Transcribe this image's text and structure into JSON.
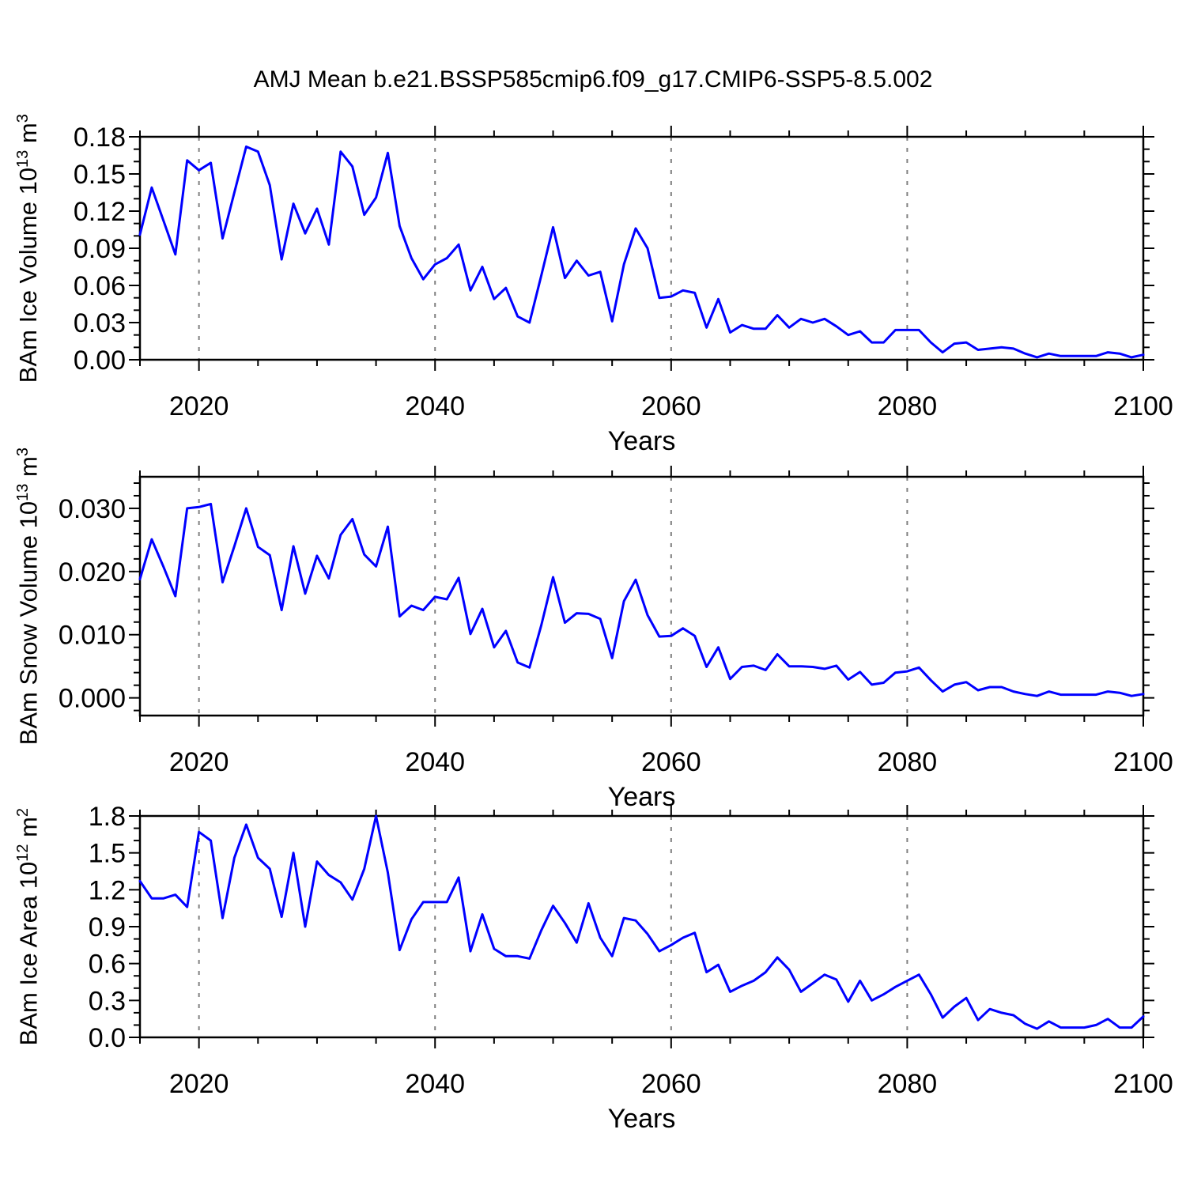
{
  "title": "AMJ Mean b.e21.BSSP585cmip6.f09_g17.CMIP6-SSP5-8.5.002",
  "line_color": "#0000ff",
  "grid_color": "#808080",
  "axis_color": "#000000",
  "chart_data": {
    "type": "line",
    "title": "AMJ Mean b.e21.BSSP585cmip6.f09_g17.CMIP6-SSP5-8.5.002",
    "xlabel": "Years",
    "xlim": [
      2015,
      2100
    ],
    "x_tick_values": [
      2020,
      2040,
      2060,
      2080,
      2100
    ],
    "x_tick_labels": [
      "2020",
      "2040",
      "2060",
      "2080",
      "2100"
    ],
    "x_minor_step": 5,
    "grid_years": [
      2020,
      2040,
      2060,
      2080
    ],
    "legend": "none",
    "x": [
      2015,
      2016,
      2017,
      2018,
      2019,
      2020,
      2021,
      2022,
      2023,
      2024,
      2025,
      2026,
      2027,
      2028,
      2029,
      2030,
      2031,
      2032,
      2033,
      2034,
      2035,
      2036,
      2037,
      2038,
      2039,
      2040,
      2041,
      2042,
      2043,
      2044,
      2045,
      2046,
      2047,
      2048,
      2049,
      2050,
      2051,
      2052,
      2053,
      2054,
      2055,
      2056,
      2057,
      2058,
      2059,
      2060,
      2061,
      2062,
      2063,
      2064,
      2065,
      2066,
      2067,
      2068,
      2069,
      2070,
      2071,
      2072,
      2073,
      2074,
      2075,
      2076,
      2077,
      2078,
      2079,
      2080,
      2081,
      2082,
      2083,
      2084,
      2085,
      2086,
      2087,
      2088,
      2089,
      2090,
      2091,
      2092,
      2093,
      2094,
      2095,
      2096,
      2097,
      2098,
      2099,
      2100
    ],
    "charts": [
      {
        "id": "ice-volume",
        "name": "BAm Ice Volume",
        "ylabel": "BAm Ice Volume 10^13 m^3",
        "ylim": [
          0,
          0.18
        ],
        "y_tick_values": [
          0.0,
          0.03,
          0.06,
          0.09,
          0.12,
          0.15,
          0.18
        ],
        "y_tick_labels": [
          "0.00",
          "0.03",
          "0.06",
          "0.09",
          "0.12",
          "0.15",
          "0.18"
        ],
        "y_minor_step": 0.01,
        "values": [
          0.101,
          0.139,
          0.112,
          0.085,
          0.161,
          0.153,
          0.159,
          0.098,
          0.135,
          0.172,
          0.168,
          0.141,
          0.081,
          0.126,
          0.102,
          0.122,
          0.093,
          0.168,
          0.156,
          0.117,
          0.131,
          0.167,
          0.108,
          0.082,
          0.065,
          0.077,
          0.082,
          0.093,
          0.056,
          0.075,
          0.049,
          0.058,
          0.035,
          0.03,
          0.068,
          0.107,
          0.066,
          0.08,
          0.068,
          0.071,
          0.031,
          0.077,
          0.106,
          0.09,
          0.05,
          0.051,
          0.056,
          0.054,
          0.026,
          0.049,
          0.022,
          0.028,
          0.025,
          0.025,
          0.036,
          0.026,
          0.033,
          0.03,
          0.033,
          0.027,
          0.02,
          0.023,
          0.014,
          0.014,
          0.024,
          0.024,
          0.024,
          0.014,
          0.006,
          0.013,
          0.014,
          0.008,
          0.009,
          0.01,
          0.009,
          0.005,
          0.002,
          0.005,
          0.003,
          0.003,
          0.003,
          0.003,
          0.006,
          0.005,
          0.002,
          0.004
        ]
      },
      {
        "id": "snow-volume",
        "name": "BAm Snow Volume",
        "ylabel": "BAm Snow Volume 10^13 m^3",
        "ylim": [
          -0.0028,
          0.035
        ],
        "y_tick_values": [
          0.0,
          0.01,
          0.02,
          0.03
        ],
        "y_tick_labels": [
          "0.000",
          "0.010",
          "0.020",
          "0.030"
        ],
        "y_minor_step": 0.002,
        "values": [
          0.0188,
          0.0251,
          0.0207,
          0.0161,
          0.03,
          0.0302,
          0.0307,
          0.0183,
          0.024,
          0.03,
          0.0239,
          0.0226,
          0.0139,
          0.024,
          0.0165,
          0.0225,
          0.0189,
          0.0258,
          0.0283,
          0.0227,
          0.0208,
          0.0271,
          0.0129,
          0.0146,
          0.0139,
          0.016,
          0.0156,
          0.019,
          0.0101,
          0.0141,
          0.008,
          0.0106,
          0.0056,
          0.0048,
          0.0115,
          0.0191,
          0.0119,
          0.0134,
          0.0133,
          0.0125,
          0.0063,
          0.0153,
          0.0187,
          0.0131,
          0.0097,
          0.0098,
          0.011,
          0.0098,
          0.0049,
          0.008,
          0.003,
          0.0049,
          0.0051,
          0.0044,
          0.0069,
          0.005,
          0.005,
          0.0049,
          0.0046,
          0.0051,
          0.0029,
          0.0041,
          0.0021,
          0.0024,
          0.004,
          0.0042,
          0.0048,
          0.0028,
          0.001,
          0.0021,
          0.0025,
          0.0012,
          0.0017,
          0.0017,
          0.001,
          0.0006,
          0.0003,
          0.001,
          0.0005,
          0.0005,
          0.0005,
          0.0005,
          0.001,
          0.0008,
          0.0003,
          0.0006
        ]
      },
      {
        "id": "ice-area",
        "name": "BAm Ice Area",
        "ylabel": "BAm Ice Area 10^12 m^2",
        "ylim": [
          0,
          1.8
        ],
        "y_tick_values": [
          0.0,
          0.3,
          0.6,
          0.9,
          1.2,
          1.5,
          1.8
        ],
        "y_tick_labels": [
          "0.0",
          "0.3",
          "0.6",
          "0.9",
          "1.2",
          "1.5",
          "1.8"
        ],
        "y_minor_step": 0.1,
        "values": [
          1.27,
          1.13,
          1.13,
          1.16,
          1.06,
          1.67,
          1.6,
          0.97,
          1.46,
          1.73,
          1.46,
          1.37,
          0.98,
          1.5,
          0.9,
          1.43,
          1.32,
          1.26,
          1.12,
          1.37,
          1.8,
          1.34,
          0.71,
          0.96,
          1.1,
          1.1,
          1.1,
          1.3,
          0.7,
          1.0,
          0.72,
          0.66,
          0.66,
          0.64,
          0.87,
          1.07,
          0.93,
          0.77,
          1.09,
          0.81,
          0.66,
          0.97,
          0.95,
          0.84,
          0.7,
          0.75,
          0.81,
          0.85,
          0.53,
          0.59,
          0.37,
          0.42,
          0.46,
          0.53,
          0.65,
          0.55,
          0.37,
          0.44,
          0.51,
          0.47,
          0.29,
          0.46,
          0.3,
          0.35,
          0.41,
          0.46,
          0.51,
          0.35,
          0.16,
          0.25,
          0.32,
          0.14,
          0.23,
          0.2,
          0.18,
          0.11,
          0.07,
          0.13,
          0.08,
          0.08,
          0.08,
          0.1,
          0.15,
          0.08,
          0.08,
          0.17
        ]
      }
    ]
  }
}
